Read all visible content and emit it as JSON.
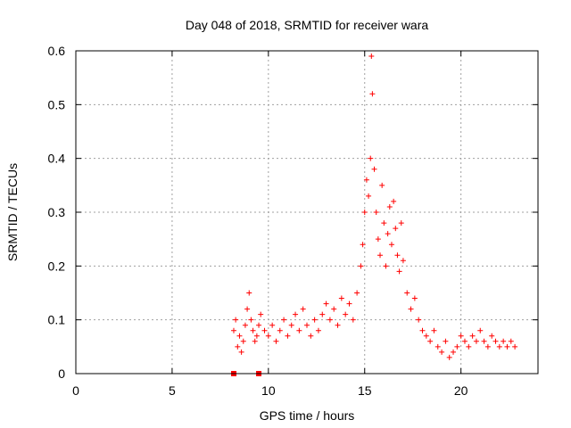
{
  "chart_data": {
    "type": "scatter",
    "title": "Day 048 of 2018, SRMTID for receiver wara",
    "xlabel": "GPS time / hours",
    "ylabel": "SRMTID / TECUs",
    "xlim": [
      0,
      24
    ],
    "ylim": [
      0,
      0.6
    ],
    "x_ticks": [
      0,
      5,
      10,
      15,
      20
    ],
    "x_tick_labels": [
      "0",
      "5",
      "10",
      "15",
      "20"
    ],
    "y_ticks": [
      0,
      0.1,
      0.2,
      0.3,
      0.4,
      0.5,
      0.6
    ],
    "y_tick_labels": [
      "0",
      "0.1",
      "0.2",
      "0.3",
      "0.4",
      "0.5",
      "0.6"
    ],
    "grid": true,
    "series_color": "#ff0000",
    "marker": "plus",
    "outlier_markers": {
      "marker": "square",
      "points": [
        [
          8.2,
          0.0
        ],
        [
          9.5,
          0.0
        ]
      ]
    },
    "series": [
      {
        "name": "SRMTID",
        "x": [
          8.2,
          8.3,
          8.4,
          8.5,
          8.6,
          8.7,
          8.8,
          8.9,
          9.0,
          9.1,
          9.2,
          9.3,
          9.4,
          9.5,
          9.6,
          9.8,
          10.0,
          10.2,
          10.4,
          10.6,
          10.8,
          11.0,
          11.2,
          11.4,
          11.6,
          11.8,
          12.0,
          12.2,
          12.4,
          12.6,
          12.8,
          13.0,
          13.2,
          13.4,
          13.6,
          13.8,
          14.0,
          14.2,
          14.4,
          14.6,
          14.8,
          14.9,
          15.0,
          15.1,
          15.2,
          15.3,
          15.35,
          15.4,
          15.5,
          15.6,
          15.7,
          15.8,
          15.9,
          16.0,
          16.1,
          16.2,
          16.3,
          16.4,
          16.5,
          16.6,
          16.7,
          16.8,
          16.9,
          17.0,
          17.2,
          17.4,
          17.6,
          17.8,
          18.0,
          18.2,
          18.4,
          18.6,
          18.8,
          19.0,
          19.2,
          19.4,
          19.6,
          19.8,
          20.0,
          20.2,
          20.4,
          20.6,
          20.8,
          21.0,
          21.2,
          21.4,
          21.6,
          21.8,
          22.0,
          22.2,
          22.4,
          22.6,
          22.8
        ],
        "y": [
          0.08,
          0.1,
          0.05,
          0.07,
          0.04,
          0.06,
          0.09,
          0.12,
          0.15,
          0.1,
          0.08,
          0.06,
          0.07,
          0.09,
          0.11,
          0.08,
          0.07,
          0.09,
          0.06,
          0.08,
          0.1,
          0.07,
          0.09,
          0.11,
          0.08,
          0.12,
          0.09,
          0.07,
          0.1,
          0.08,
          0.11,
          0.13,
          0.1,
          0.12,
          0.09,
          0.14,
          0.11,
          0.13,
          0.1,
          0.15,
          0.2,
          0.24,
          0.3,
          0.36,
          0.33,
          0.4,
          0.59,
          0.52,
          0.38,
          0.3,
          0.25,
          0.22,
          0.35,
          0.28,
          0.2,
          0.26,
          0.31,
          0.24,
          0.32,
          0.27,
          0.22,
          0.19,
          0.28,
          0.21,
          0.15,
          0.12,
          0.14,
          0.1,
          0.08,
          0.07,
          0.06,
          0.08,
          0.05,
          0.04,
          0.06,
          0.03,
          0.04,
          0.05,
          0.07,
          0.06,
          0.05,
          0.07,
          0.06,
          0.08,
          0.06,
          0.05,
          0.07,
          0.06,
          0.05,
          0.06,
          0.05,
          0.06,
          0.05
        ]
      }
    ]
  }
}
